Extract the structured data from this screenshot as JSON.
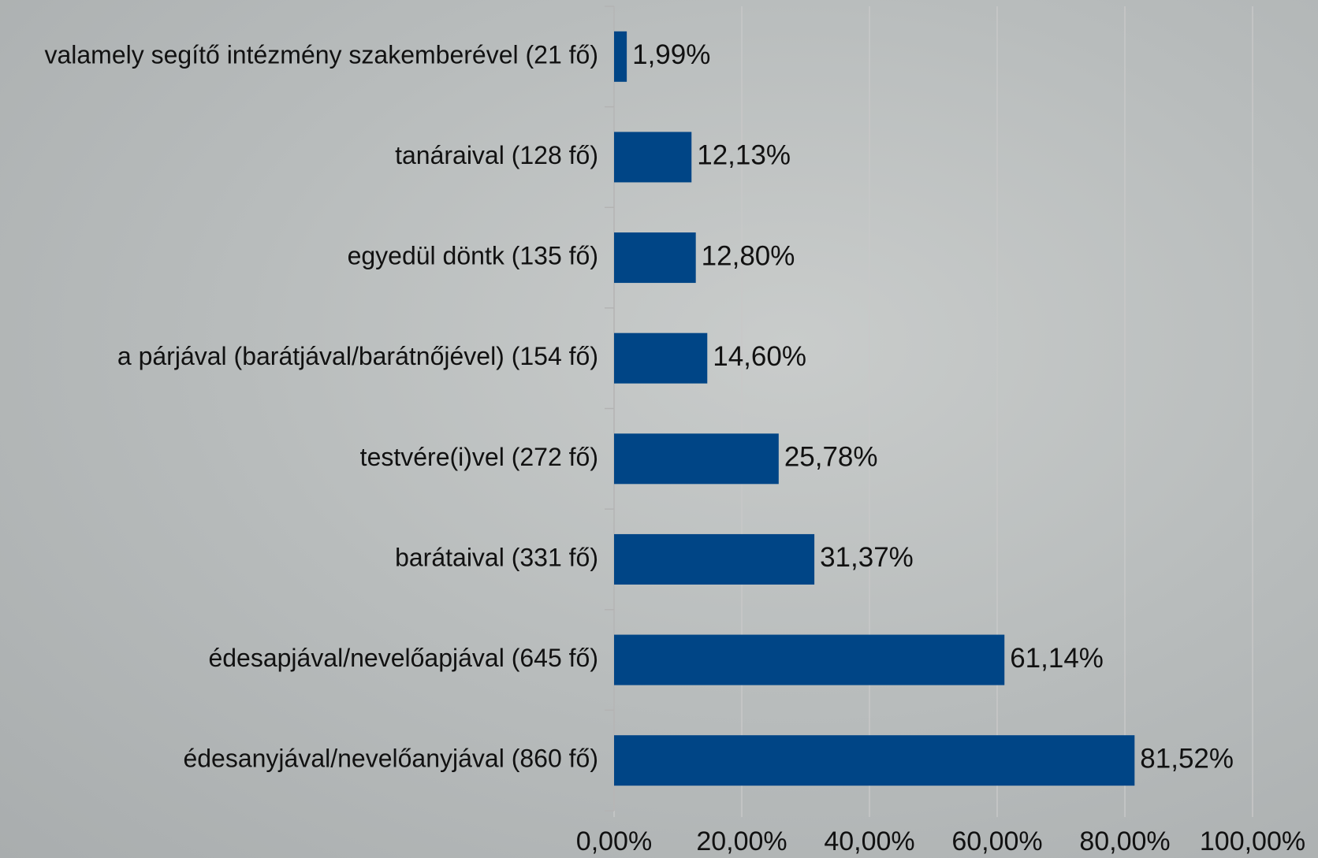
{
  "chart_data": {
    "type": "bar",
    "orientation": "horizontal",
    "categories": [
      "valamely segítő intézmény szakemberével (21 fő)",
      "tanáraival (128 fő)",
      "egyedül döntk (135 fő)",
      "a párjával (barátjával/barátnőjével) (154 fő)",
      "testvére(i)vel (272 fő)",
      "barátaival (331 fő)",
      "édesapjával/nevelőapjával (645 fő)",
      "édesanyjával/nevelőanyjával (860 fő)"
    ],
    "values": [
      1.99,
      12.13,
      12.8,
      14.6,
      25.78,
      31.37,
      61.14,
      81.52
    ],
    "value_labels": [
      "1,99%",
      "12,13%",
      "12,80%",
      "14,60%",
      "25,78%",
      "31,37%",
      "61,14%",
      "81,52%"
    ],
    "color": "#004586",
    "xlim": [
      0,
      100
    ],
    "xticks": [
      {
        "value": 0,
        "label": "0,00%"
      },
      {
        "value": 20,
        "label": "20,00%"
      },
      {
        "value": 40,
        "label": "40,00%"
      },
      {
        "value": 60,
        "label": "60,00%"
      },
      {
        "value": 80,
        "label": "80,00%"
      },
      {
        "value": 100,
        "label": "100,00%"
      }
    ],
    "grid": true
  }
}
